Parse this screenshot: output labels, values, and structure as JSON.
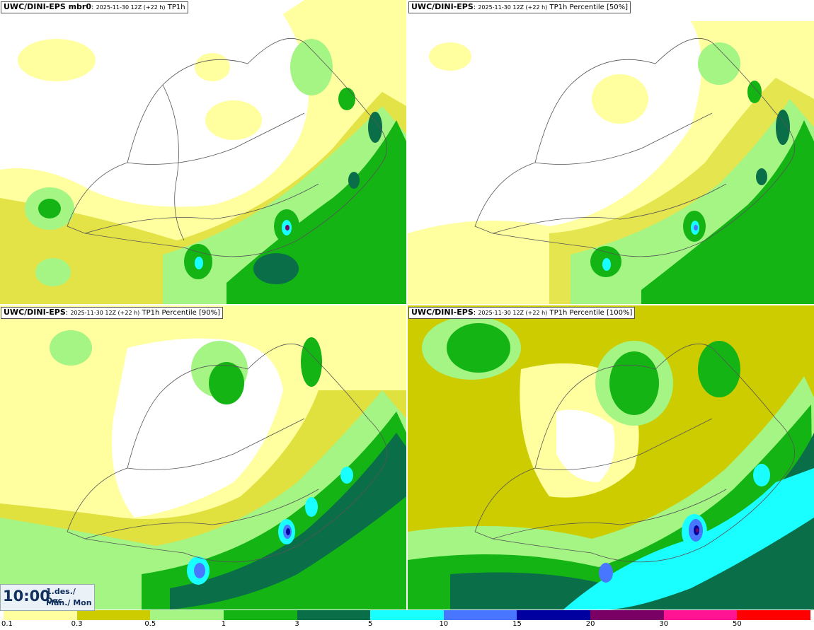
{
  "panels": [
    {
      "source": "UWC/DINI-EPS mbr0",
      "run": "2025-11-30 12Z (+22 h)",
      "field": "TP1h"
    },
    {
      "source": "UWC/DINI-EPS",
      "run": "2025-11-30 12Z (+22 h)",
      "field": "TP1h Percentile [50%]"
    },
    {
      "source": "UWC/DINI-EPS",
      "run": "2025-11-30 12Z (+22 h)",
      "field": "TP1h Percentile [90%]"
    },
    {
      "source": "UWC/DINI-EPS",
      "run": "2025-11-30 12Z (+22 h)",
      "field": "TP1h Percentile [100%]"
    }
  ],
  "valid_time": {
    "time": "10:00",
    "date": "1.des./ Dec",
    "weekday": "Mán./ Mon"
  },
  "colorbar": {
    "colors": [
      "#ffff9f",
      "#cccc00",
      "#a4f584",
      "#14b414",
      "#0a6e48",
      "#19ffff",
      "#4876ff",
      "#0000a0",
      "#7a0066",
      "#ff1493",
      "#ff0000"
    ],
    "ticks": [
      "0.1",
      "0.3",
      "0.5",
      "1",
      "3",
      "5",
      "10",
      "15",
      "20",
      "30",
      "50"
    ]
  }
}
